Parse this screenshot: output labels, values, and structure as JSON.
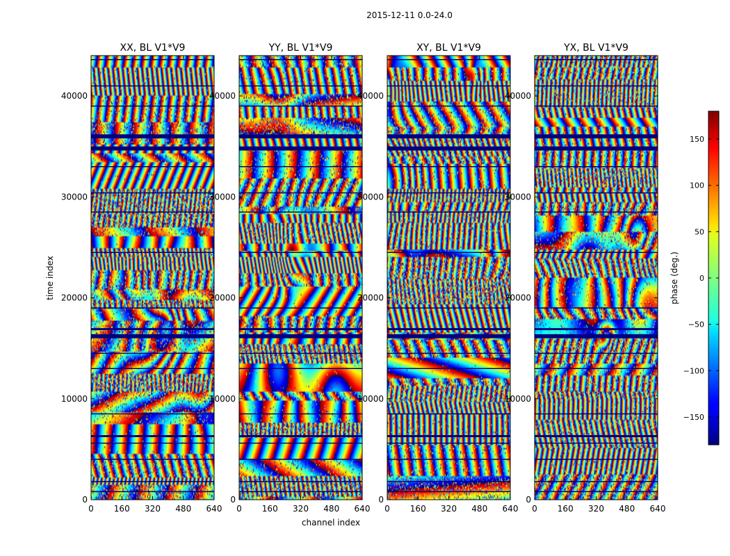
{
  "chart_data": {
    "type": "heatmap",
    "suptitle": "2015-12-11 0.0-24.0",
    "xlabel": "channel index",
    "ylabel": "time index",
    "xlim": [
      0,
      640
    ],
    "ylim": [
      0,
      44000
    ],
    "x_ticks": [
      0,
      160,
      320,
      480,
      640
    ],
    "y_ticks": [
      0,
      10000,
      20000,
      30000,
      40000
    ],
    "panels": [
      {
        "title": "XX, BL V1*V9",
        "seed": 11
      },
      {
        "title": "YY, BL V1*V9",
        "seed": 23
      },
      {
        "title": "XY, BL V1*V9",
        "seed": 37
      },
      {
        "title": "YX, BL V1*V9",
        "seed": 53
      }
    ],
    "colorbar": {
      "label": "phase (deg.)",
      "colormap": "jet",
      "range": [
        -180,
        180
      ],
      "ticks": [
        -150,
        -100,
        -50,
        0,
        50,
        100,
        150
      ]
    },
    "flagged_time_bands": [
      [
        6200,
        6400
      ],
      [
        16000,
        16400
      ],
      [
        16800,
        17000
      ],
      [
        34600,
        35000
      ],
      [
        35800,
        36200
      ]
    ],
    "gap_lines": [
      800,
      1800,
      4000,
      5600,
      8500,
      13000,
      14500,
      19000,
      24500,
      28500,
      30400,
      33000,
      39000,
      41000,
      43600
    ]
  }
}
